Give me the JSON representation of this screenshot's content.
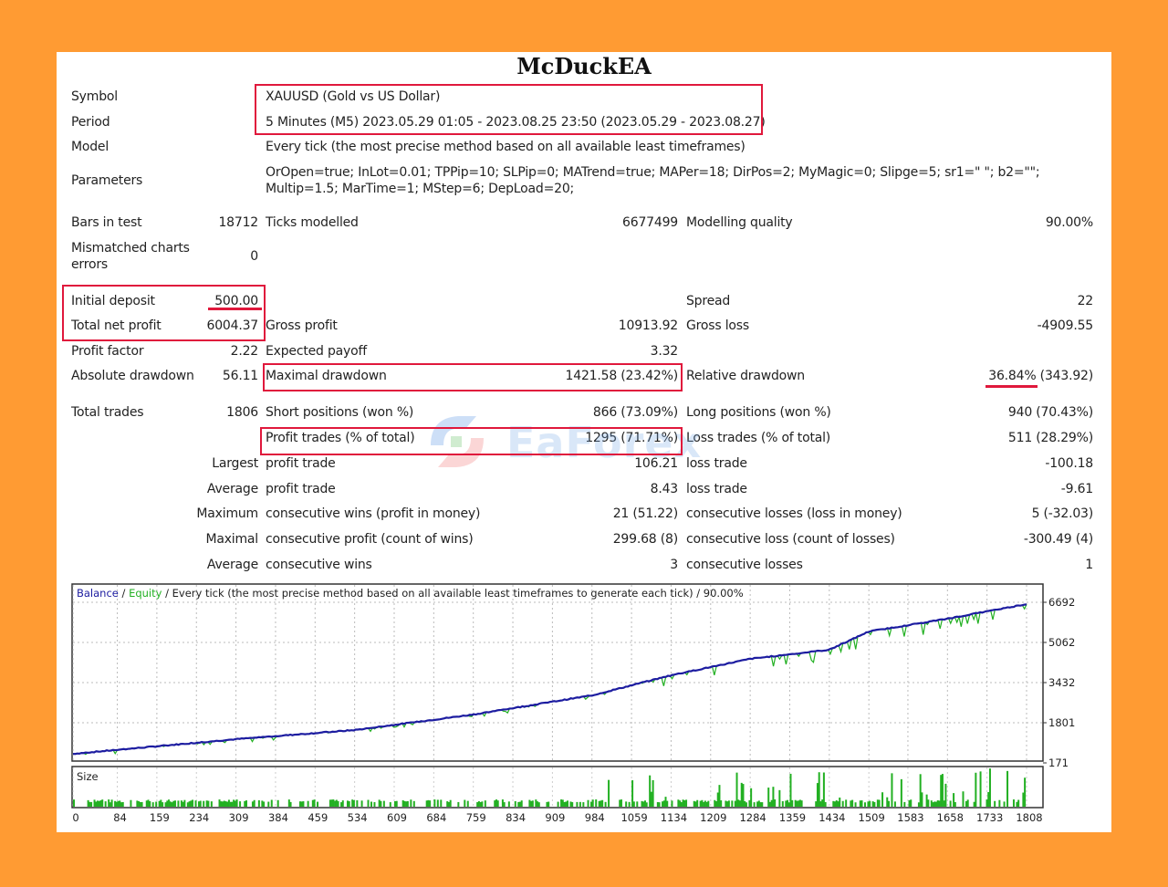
{
  "title": "McDuckEA",
  "header_rows": [
    {
      "label": "Symbol",
      "value": "XAUUSD (Gold vs US Dollar)"
    },
    {
      "label": "Period",
      "value": "5 Minutes (M5) 2023.05.29 01:05 - 2023.08.25 23:50 (2023.05.29 - 2023.08.27)"
    },
    {
      "label": "Model",
      "value": "Every tick (the most precise method based on all available least timeframes)"
    }
  ],
  "parameters": {
    "label": "Parameters",
    "line1": "OrOpen=true; InLot=0.01; TPPip=10; SLPip=0; MATrend=true; MAPer=18; DirPos=2; MyMagic=0; Slipge=5; sr1=\" \"; b2=\"\";",
    "line2": "Multip=1.5; MarTime=1; MStep=6; DepLoad=20;"
  },
  "stats": [
    {
      "l1": "Bars in test",
      "v1": "18712",
      "l2": "Ticks modelled",
      "v2": "6677499",
      "l3": "Modelling quality",
      "v3": "90.00%"
    },
    {
      "l1": "Mismatched charts\nerrors",
      "v1": "0",
      "l2": "",
      "v2": "",
      "l3": "",
      "v3": ""
    },
    {
      "l1": "Initial deposit",
      "v1": "500.00",
      "l2": "",
      "v2": "",
      "l3": "Spread",
      "v3": "22"
    },
    {
      "l1": "Total net profit",
      "v1": "6004.37",
      "l2": "Gross profit",
      "v2": "10913.92",
      "l3": "Gross loss",
      "v3": "-4909.55"
    },
    {
      "l1": "Profit factor",
      "v1": "2.22",
      "l2": "Expected payoff",
      "v2": "3.32",
      "l3": "",
      "v3": ""
    },
    {
      "l1": "Absolute drawdown",
      "v1": "56.11",
      "l2": "Maximal drawdown",
      "v2": "1421.58 (23.42%)",
      "l3": "Relative drawdown",
      "v3": "36.84% (343.92)"
    },
    {
      "l1": "Total trades",
      "v1": "1806",
      "l2": "Short positions (won %)",
      "v2": "866 (73.09%)",
      "l3": "Long positions (won %)",
      "v3": "940 (70.43%)"
    },
    {
      "l1": "",
      "v1": "",
      "l2": "Profit trades (% of total)",
      "v2": "1295 (71.71%)",
      "l3": "Loss trades (% of total)",
      "v3": "511 (28.29%)"
    },
    {
      "l1": "",
      "v1": "Largest",
      "l2": "profit trade",
      "v2": "106.21",
      "l3": "loss trade",
      "v3": "-100.18"
    },
    {
      "l1": "",
      "v1": "Average",
      "l2": "profit trade",
      "v2": "8.43",
      "l3": "loss trade",
      "v3": "-9.61"
    },
    {
      "l1": "",
      "v1": "Maximum",
      "l2": "consecutive wins (profit in money)",
      "v2": "21 (51.22)",
      "l3": "consecutive losses (loss in money)",
      "v3": "5 (-32.03)"
    },
    {
      "l1": "",
      "v1": "Maximal",
      "l2": "consecutive profit (count of wins)",
      "v2": "299.68 (8)",
      "l3": "consecutive loss (count of losses)",
      "v3": "-300.49 (4)"
    },
    {
      "l1": "",
      "v1": "Average",
      "l2": "consecutive wins",
      "v2": "3",
      "l3": "consecutive losses",
      "v3": "1"
    }
  ],
  "watermark": "EaForex",
  "colors": {
    "background": "#FF9B33",
    "highlight": "#E0183C",
    "balance": "#1C1CA0",
    "equity": "#22B022"
  },
  "chart_data": {
    "type": "line",
    "legend": {
      "balance": "Balance",
      "sep1": " / ",
      "equity": "Equity",
      "rest": " / Every tick (the most precise method based on all available least timeframes to generate each tick) / 90.00%"
    },
    "y_ticks": [
      "6692",
      "5062",
      "3432",
      "1801",
      "171"
    ],
    "ylim": [
      171,
      6692
    ],
    "x_ticks": [
      "0",
      "84",
      "159",
      "234",
      "309",
      "384",
      "459",
      "534",
      "609",
      "684",
      "759",
      "834",
      "909",
      "984",
      "1059",
      "1134",
      "1209",
      "1284",
      "1359",
      "1434",
      "1509",
      "1583",
      "1658",
      "1733",
      "1808"
    ],
    "xlim": [
      0,
      1808
    ],
    "series": [
      {
        "name": "Balance",
        "x": [
          0,
          309,
          534,
          759,
          984,
          1134,
          1284,
          1434,
          1509,
          1658,
          1808
        ],
        "y": [
          540,
          1134,
          1505,
          2135,
          2913,
          3728,
          4395,
          4765,
          5506,
          6025,
          6620
        ]
      }
    ],
    "size_label": "Size",
    "grid": true
  }
}
